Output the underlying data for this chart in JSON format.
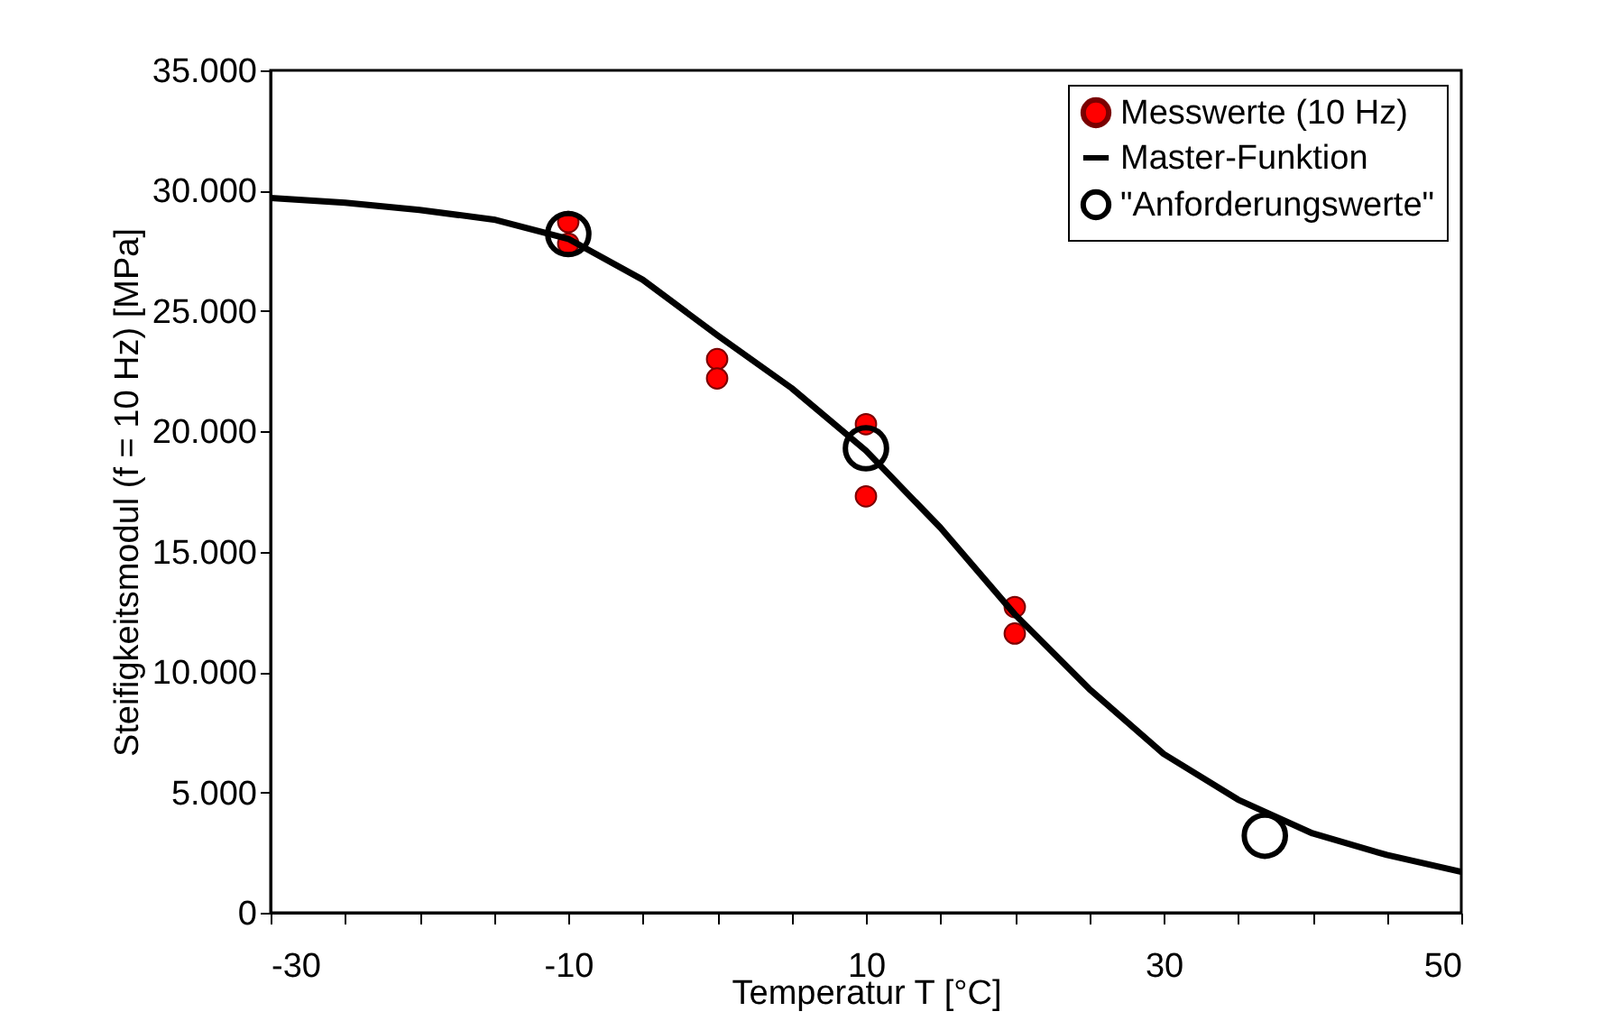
{
  "chart_data": {
    "type": "scatter",
    "xlabel": "Temperatur T [°C]",
    "ylabel": "Steifigkeitsmodul (f = 10 Hz)  [MPa]",
    "xlim": [
      -30,
      50
    ],
    "ylim": [
      0,
      35000
    ],
    "xticks": [
      -30,
      {
        "value": -25,
        "label": null
      },
      {
        "value": -20,
        "label": null
      },
      {
        "value": -15,
        "label": null
      },
      -10,
      {
        "value": -5,
        "label": null
      },
      {
        "value": 0,
        "label": null
      },
      {
        "value": 5,
        "label": null
      },
      10,
      {
        "value": 15,
        "label": null
      },
      {
        "value": 20,
        "label": null
      },
      {
        "value": 25,
        "label": null
      },
      30,
      {
        "value": 35,
        "label": null
      },
      {
        "value": 40,
        "label": null
      },
      {
        "value": 45,
        "label": null
      },
      50
    ],
    "yticks": [
      {
        "value": 0,
        "label": "0"
      },
      {
        "value": 5000,
        "label": "5.000"
      },
      {
        "value": 10000,
        "label": "10.000"
      },
      {
        "value": 15000,
        "label": "15.000"
      },
      {
        "value": 20000,
        "label": "20.000"
      },
      {
        "value": 25000,
        "label": "25.000"
      },
      {
        "value": 30000,
        "label": "30.000"
      },
      {
        "value": 35000,
        "label": "35.000"
      }
    ],
    "grid": false,
    "legend": "top right",
    "series": [
      {
        "name": "Messwerte (10 Hz)",
        "marker": "circle",
        "color": "#ff0000",
        "x": [
          -10,
          -10,
          0,
          0,
          10,
          10,
          20,
          20
        ],
        "values": [
          28700,
          27800,
          23000,
          22200,
          20300,
          17300,
          12700,
          11600
        ]
      },
      {
        "name": "Master-Funktion",
        "type": "line",
        "color": "#000000",
        "x": [
          -30,
          -25,
          -20,
          -15,
          -10,
          -5,
          0,
          5,
          10,
          15,
          20,
          25,
          30,
          35,
          40,
          45,
          50
        ],
        "values": [
          29700,
          29500,
          29200,
          28800,
          28000,
          26300,
          24000,
          21800,
          19200,
          16000,
          12400,
          9300,
          6600,
          4700,
          3300,
          2400,
          1700
        ]
      },
      {
        "name": "\"Anforderungswerte\"",
        "marker": "circle",
        "color": "#000000",
        "x": [
          -10,
          10,
          36.8
        ],
        "values": [
          28200,
          19300,
          3200
        ]
      }
    ]
  }
}
